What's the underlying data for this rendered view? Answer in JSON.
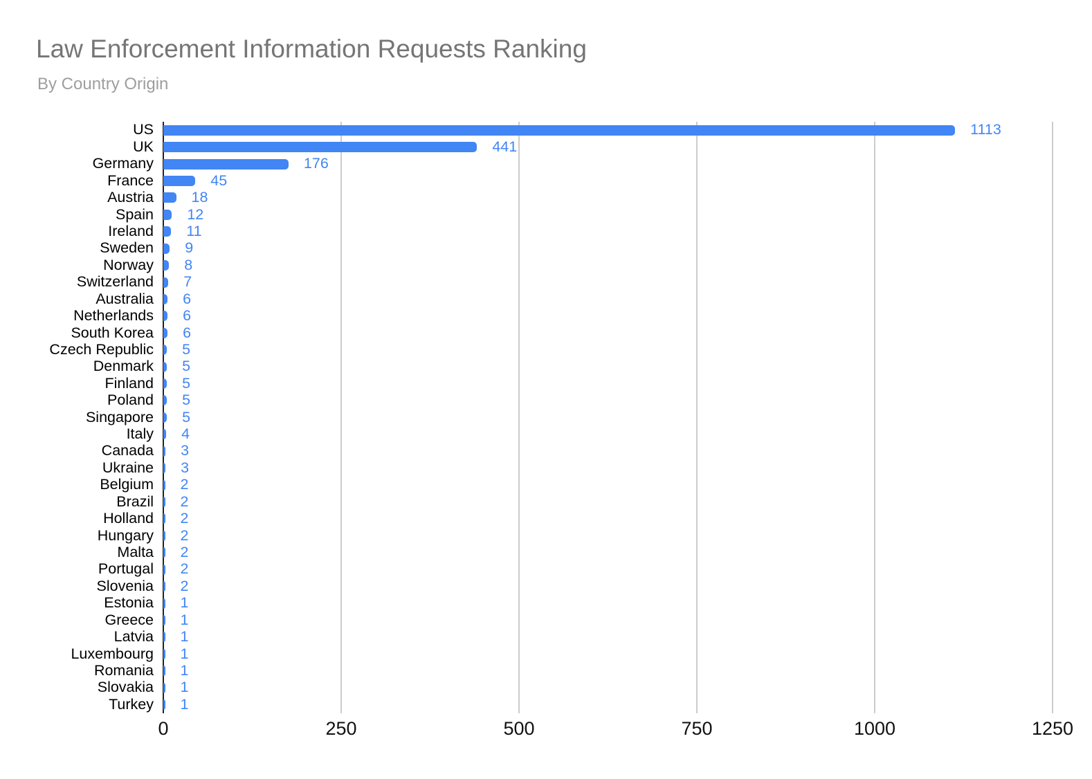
{
  "header": {
    "title": "Law Enforcement Information Requests Ranking",
    "subtitle": "By Country Origin"
  },
  "chart_data": {
    "type": "bar",
    "orientation": "horizontal",
    "title": "Law Enforcement Information Requests Ranking",
    "subtitle": "By Country Origin",
    "categories": [
      "US",
      "UK",
      "Germany",
      "France",
      "Austria",
      "Spain",
      "Ireland",
      "Sweden",
      "Norway",
      "Switzerland",
      "Australia",
      "Netherlands",
      "South Korea",
      "Czech Republic",
      "Denmark",
      "Finland",
      "Poland",
      "Singapore",
      "Italy",
      "Canada",
      "Ukraine",
      "Belgium",
      "Brazil",
      "Holland",
      "Hungary",
      "Malta",
      "Portugal",
      "Slovenia",
      "Estonia",
      "Greece",
      "Latvia",
      "Luxembourg",
      "Romania",
      "Slovakia",
      "Turkey"
    ],
    "values": [
      1113,
      441,
      176,
      45,
      18,
      12,
      11,
      9,
      8,
      7,
      6,
      6,
      6,
      5,
      5,
      5,
      5,
      5,
      4,
      3,
      3,
      2,
      2,
      2,
      2,
      2,
      2,
      2,
      1,
      1,
      1,
      1,
      1,
      1,
      1
    ],
    "xlabel": "",
    "ylabel": "",
    "xlim": [
      0,
      1250
    ],
    "x_ticks": [
      0,
      250,
      500,
      750,
      1000,
      1250
    ],
    "grid": true,
    "value_labels": "shown right of each bar",
    "colors": {
      "bar": "#4285F4",
      "value_label": "#4285F4",
      "gridline": "#cccccc",
      "axis_line": "#212121",
      "category_label": "#000000",
      "tick_label": "#111111",
      "title": "#757575",
      "subtitle": "#9e9e9e"
    }
  }
}
